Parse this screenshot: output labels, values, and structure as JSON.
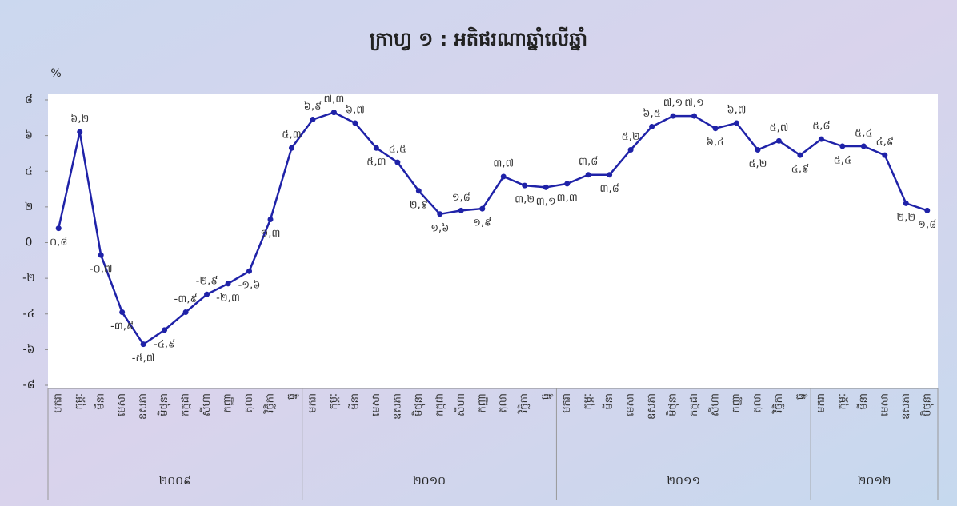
{
  "chart_data": {
    "type": "line",
    "title": "ក្រាហ្វ ១ : អតិផរណាឆ្នាំលើឆ្នាំ",
    "y_label": "%",
    "categories": [
      "មករា",
      "កុម្ភៈ",
      "មីនា",
      "មេសា",
      "ឧសភា",
      "មិថុនា",
      "កក្កដា",
      "សីហា",
      "កញ្ញា",
      "តុលា",
      "វិច្ឆិកា",
      "ធ្នូ",
      "មករា",
      "កុម្ភៈ",
      "មីនា",
      "មេសា",
      "ឧសភា",
      "មិថុនា",
      "កក្កដា",
      "សីហា",
      "កញ្ញា",
      "តុលា",
      "វិច្ឆិកា",
      "ធ្នូ",
      "មករា",
      "កុម្ភៈ",
      "មីនា",
      "មេសា",
      "ឧសភា",
      "មិថុនា",
      "កក្កដា",
      "សីហា",
      "កញ្ញា",
      "តុលា",
      "វិច្ឆិកា",
      "ធ្នូ",
      "មករា",
      "កុម្ភៈ",
      "មីនា",
      "មេសា",
      "ឧសភា",
      "មិថុនា"
    ],
    "x_groups": [
      "២០០៩",
      "២០១០",
      "២០១១",
      "២០១២"
    ],
    "color": "#1f22a8",
    "values": [
      0.8,
      6.2,
      -0.7,
      -3.9,
      -5.7,
      -4.9,
      -3.9,
      -2.9,
      -2.3,
      -1.6,
      1.3,
      5.3,
      6.9,
      7.3,
      6.7,
      5.3,
      4.5,
      2.9,
      1.6,
      1.8,
      1.9,
      3.7,
      3.2,
      3.1,
      3.3,
      3.8,
      3.8,
      5.2,
      6.5,
      7.1,
      7.1,
      6.4,
      6.7,
      5.2,
      5.7,
      4.9,
      5.8,
      5.4,
      5.4,
      4.9,
      2.2,
      1.8
    ],
    "value_labels": [
      "០,៨",
      "៦,២",
      "-០,៧",
      "-៣,៩",
      "-៥,៧",
      "-៤,៩",
      "-៣,៩",
      "-២,៩",
      "-២,៣",
      "-១,៦",
      "១,៣",
      "៥,៣",
      "៦,៩",
      "៧,៣",
      "៦,៧",
      "៥,៣",
      "៤,៥",
      "២,៩",
      "១,៦",
      "១,៨",
      "១,៩",
      "៣,៧",
      "៣,២",
      "៣,១",
      "៣,៣",
      "៣,៨",
      "៣,៨",
      "៥,២",
      "៦,៥",
      "៧,១",
      "៧,១",
      "៦,៤",
      "៦,៧",
      "៥,២",
      "៥,៧",
      "៤,៩",
      "៥,៨",
      "៥,៤",
      "៥,៤",
      "៤,៩",
      "២,២",
      "១,៨"
    ],
    "ylim": [
      -8,
      8
    ],
    "yticks": [
      {
        "value": 8,
        "label": "៨"
      },
      {
        "value": 6,
        "label": "៦"
      },
      {
        "value": 4,
        "label": "៤"
      },
      {
        "value": 2,
        "label": "២"
      },
      0,
      {
        "value": -2,
        "label": "-២"
      },
      {
        "value": -4,
        "label": "-៤"
      },
      {
        "value": -6,
        "label": "-៦"
      },
      {
        "value": -8,
        "label": "-៨"
      }
    ]
  }
}
